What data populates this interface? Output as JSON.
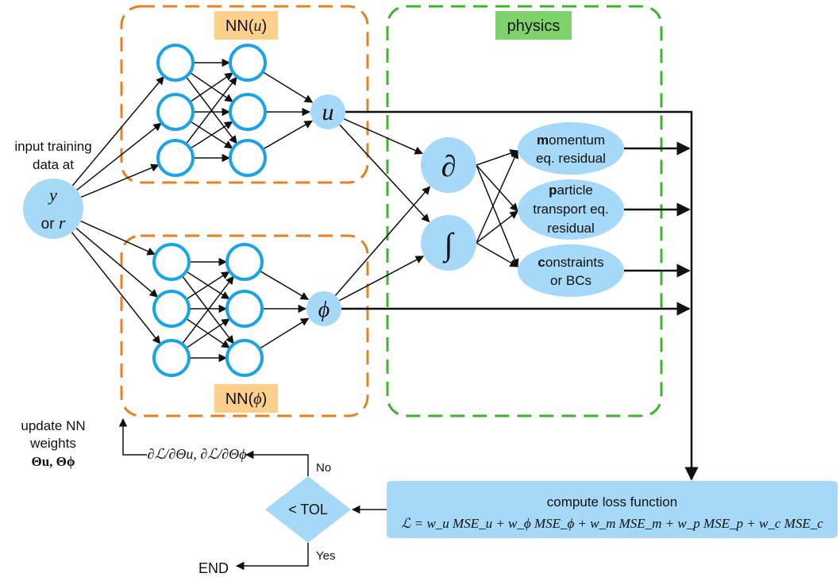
{
  "nn_u": {
    "label": "NN(",
    "var": "u",
    "close": ")"
  },
  "nn_phi": {
    "label": "NN(",
    "var": "ϕ",
    "close": ")"
  },
  "physics": {
    "label": "physics"
  },
  "input": {
    "line1": "input training",
    "line2": "data at",
    "var_y": "y",
    "or": "or",
    "var_r": "r"
  },
  "outputs": {
    "u": "u",
    "phi": "ϕ"
  },
  "operators": {
    "derivative": "∂",
    "integral": "∫"
  },
  "residuals": {
    "momentum": {
      "bold": "m",
      "rest": "omentum",
      "line2": "eq. residual"
    },
    "particle": {
      "bold": "p",
      "rest": "article",
      "line2": "transport eq.",
      "line3": "residual"
    },
    "constraints": {
      "bold": "c",
      "rest": "onstraints",
      "line2": "or BCs"
    }
  },
  "loss": {
    "title": "compute loss function",
    "formula": "ℒ = w_u MSE_u + w_ϕ MSE_ϕ + w_m MSE_m + w_p MSE_p + w_c MSE_c"
  },
  "decision": {
    "label": "< TOL",
    "no": "No",
    "yes": "Yes",
    "end": "END"
  },
  "update": {
    "line1": "update NN",
    "line2": "weights",
    "line3": "Θu, Θϕ",
    "gradients": "∂ℒ/∂Θu, ∂ℒ/∂Θϕ"
  },
  "colors": {
    "node_stroke": "#1aa3e8",
    "fill_blue": "#a6d8f8",
    "orange": "#e8801e",
    "green": "#3cb52c",
    "green_fill": "#7fd36a",
    "orange_fill": "#fcd08a"
  }
}
